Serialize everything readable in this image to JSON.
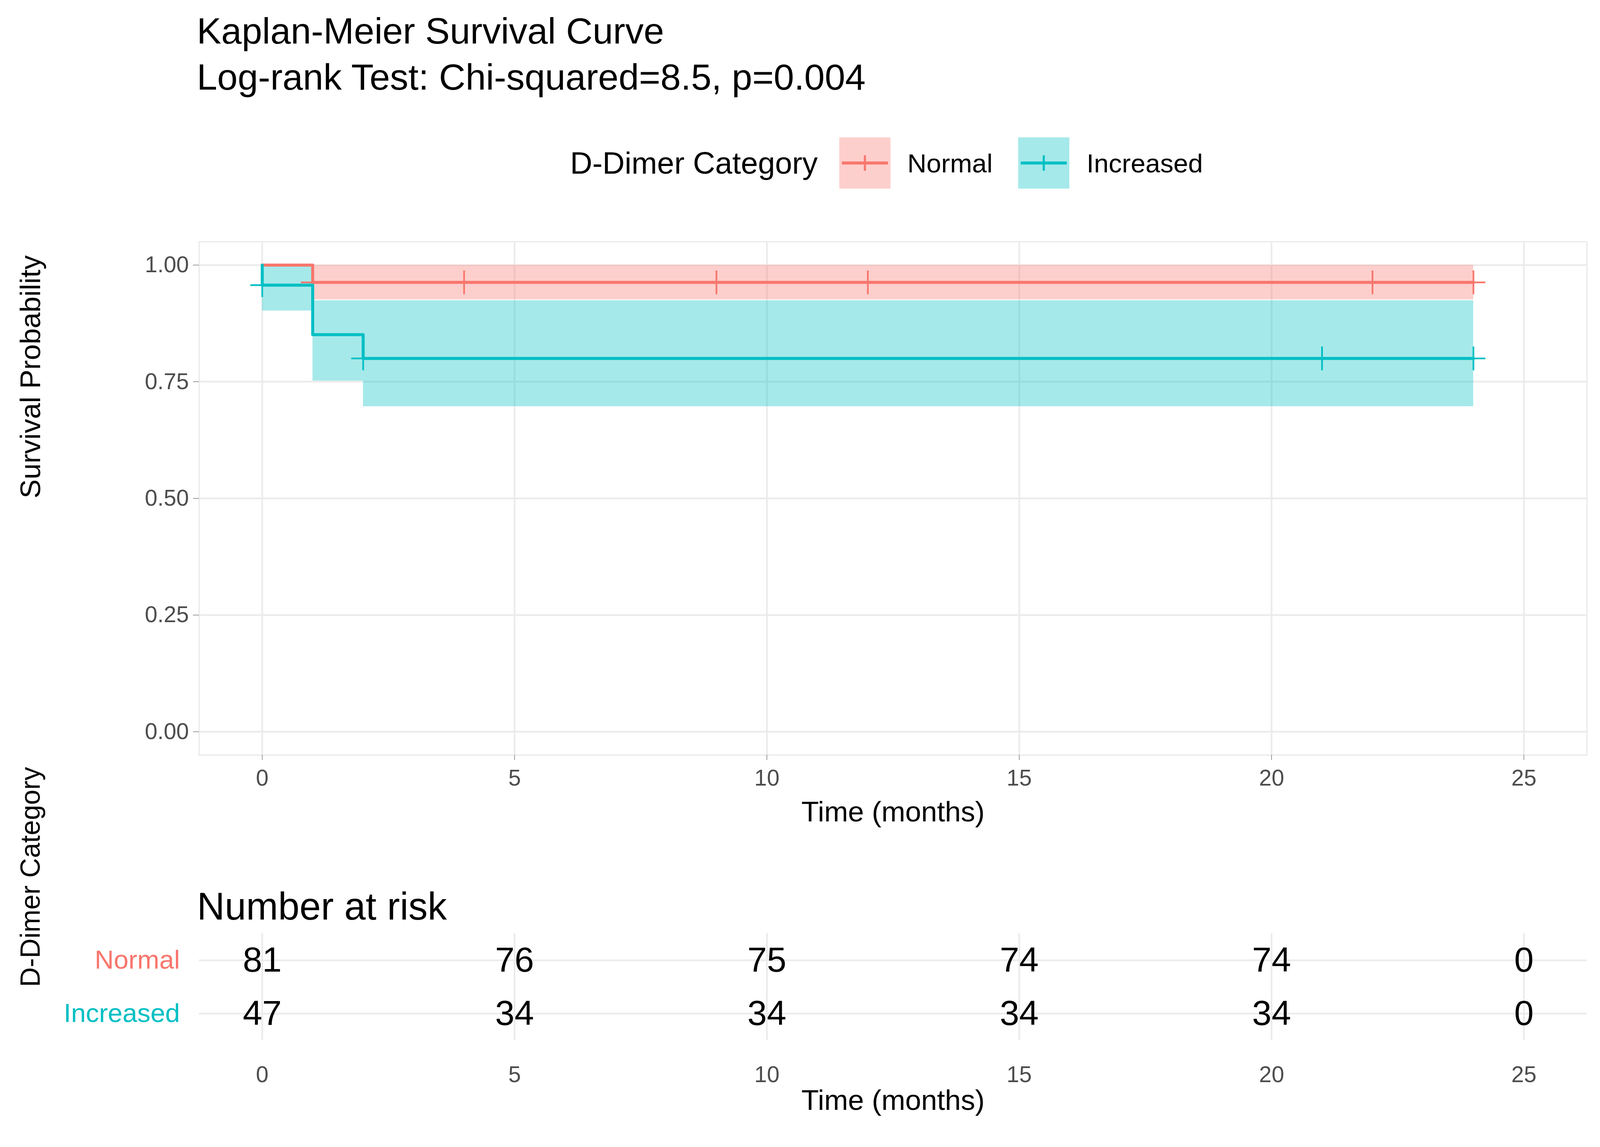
{
  "chart_data": {
    "type": "kaplan_meier",
    "title": "Kaplan-Meier Survival Curve",
    "subtitle": "Log-rank Test: Chi-squared=8.5, p=0.004",
    "legend_title": "D-Dimer Category",
    "legend": "top",
    "x_label": "Time (months)",
    "y_label": "Survival Probability",
    "xlim": [
      -1.25,
      26.25
    ],
    "ylim": [
      -0.05,
      1.05
    ],
    "xticks": [
      0,
      5,
      10,
      15,
      20,
      25
    ],
    "yticks": [
      {
        "value": 0,
        "label": "0.00"
      },
      {
        "value": 0.25,
        "label": "0.25"
      },
      {
        "value": 0.5,
        "label": "0.50"
      },
      {
        "value": 0.75,
        "label": "0.75"
      },
      {
        "value": 1,
        "label": "1.00"
      }
    ],
    "grid": true,
    "series": [
      {
        "name": "Normal",
        "color": "#F8766D",
        "x": [
          0,
          1,
          24
        ],
        "values": [
          1,
          0.963,
          0.963
        ],
        "lower": [
          1,
          0.926,
          0.926
        ],
        "upper": [
          1,
          1,
          1
        ],
        "censor_x": [
          1,
          4,
          9,
          12,
          22,
          24
        ],
        "censor_values": [
          0.963,
          0.963,
          0.963,
          0.963,
          0.963,
          0.963
        ]
      },
      {
        "name": "Increased",
        "color": "#00BFC4",
        "x": [
          0,
          0,
          1,
          2,
          24
        ],
        "values": [
          1,
          0.957,
          0.851,
          0.8,
          0.8
        ],
        "lower": [
          1,
          0.902,
          0.752,
          0.697,
          0.697
        ],
        "upper": [
          1,
          1,
          0.924,
          0.924,
          0.924
        ],
        "censor_x": [
          0,
          2,
          21,
          24
        ],
        "censor_values": [
          0.957,
          0.8,
          0.8,
          0.8
        ]
      }
    ],
    "risk_table": {
      "title": "Number at risk",
      "y_label": "D-Dimer Category",
      "x_label": "Time (months)",
      "x": [
        0,
        5,
        10,
        15,
        20,
        25
      ],
      "rows": [
        {
          "name": "Normal",
          "values": [
            81,
            76,
            75,
            74,
            74,
            0
          ]
        },
        {
          "name": "Increased",
          "values": [
            47,
            34,
            34,
            34,
            34,
            0
          ]
        }
      ]
    }
  }
}
